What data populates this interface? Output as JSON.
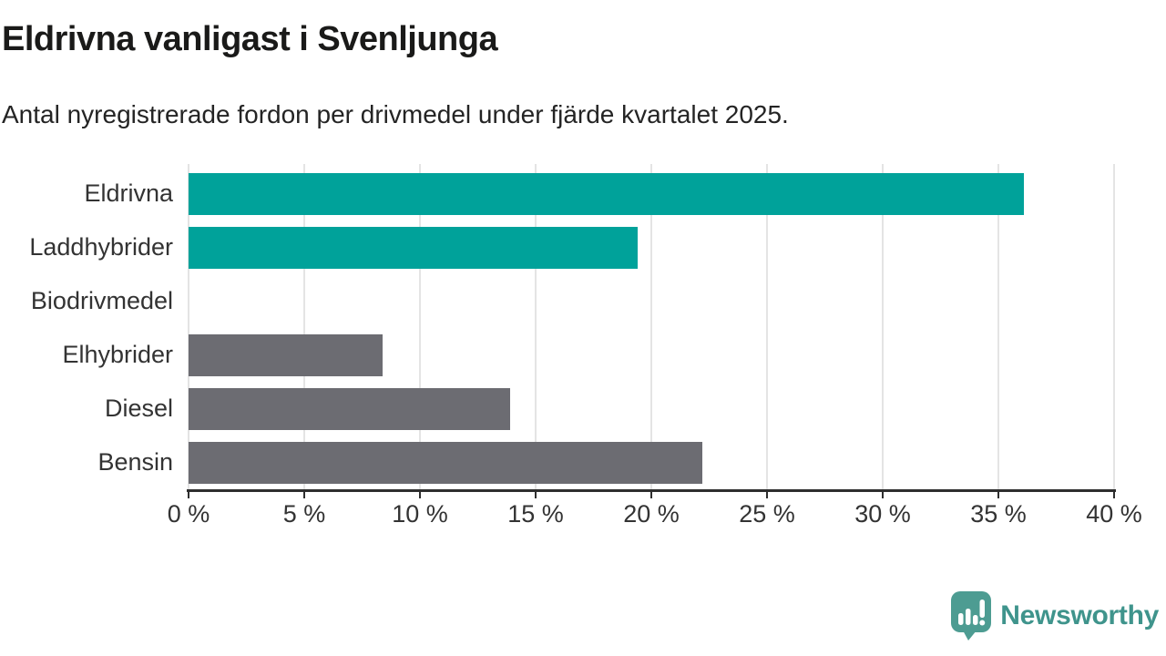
{
  "header": {
    "title": "Eldrivna vanligast i Svenljunga",
    "subtitle": "Antal nyregistrerade fordon per drivmedel under fjärde kvartalet 2025."
  },
  "chart_data": {
    "type": "bar",
    "orientation": "horizontal",
    "categories": [
      "Eldrivna",
      "Laddhybrider",
      "Biodrivmedel",
      "Elhybrider",
      "Diesel",
      "Bensin"
    ],
    "values": [
      36.1,
      19.4,
      0,
      8.4,
      13.9,
      22.2
    ],
    "unit": "%",
    "title": "Eldrivna vanligast i Svenljunga",
    "xlabel": "",
    "ylabel": "",
    "xlim": [
      0,
      40
    ],
    "x_ticks": [
      0,
      5,
      10,
      15,
      20,
      25,
      30,
      35,
      40
    ],
    "x_tick_labels": [
      "0 %",
      "5 %",
      "10 %",
      "15 %",
      "20 %",
      "25 %",
      "30 %",
      "35 %",
      "40 %"
    ],
    "grid": true,
    "legend": false,
    "bar_colors": [
      "#00a29a",
      "#00a29a",
      "#6c6c72",
      "#6c6c72",
      "#6c6c72",
      "#6c6c72"
    ],
    "highlight_color": "#00a29a",
    "default_color": "#6c6c72"
  },
  "footer": {
    "brand": "Newsworthy",
    "logo_icon": "bar-chart-speech-bubble-icon",
    "brand_color": "#3f948c",
    "logo_fill": "#4d9c92"
  }
}
